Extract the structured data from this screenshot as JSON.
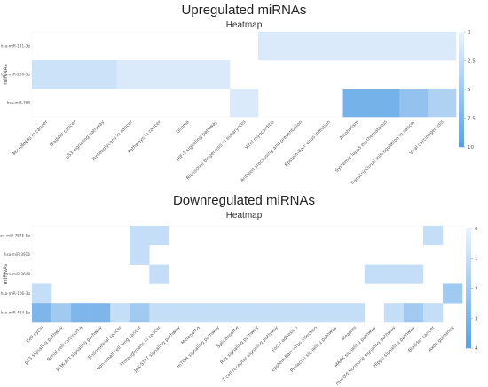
{
  "colors": {
    "cell_light": "#e8f2fc",
    "cell_dark": "#5aa2e6",
    "background": "#ffffff",
    "text": "#222222"
  },
  "chart_data": [
    {
      "type": "heatmap",
      "title": "Upregulated miRNAs",
      "subtitle": "Heatmap",
      "ylabel": "miRNAs",
      "xlabel": "",
      "rows": [
        "hsa-miR-141-3p",
        "hsa-miR-200-3p",
        "hsa-miR-766"
      ],
      "columns": [
        "MicroRNAs in cancer",
        "Bladder cancer",
        "p53 signaling pathway",
        "Proteoglycans in cancer",
        "Pathways in cancer",
        "Glioma",
        "HIF-1 signaling pathway",
        "Ribosome biogenesis in eukaryotes",
        "Viral myocarditis",
        "Antigen processing and presentation",
        "Epstein-Barr virus infection",
        "Alcoholism",
        "Systemic lupus erythematosus",
        "Transcriptional misregulation in cancer",
        "Viral carcinogenesis"
      ],
      "values": [
        [
          0,
          0,
          0,
          0,
          0,
          0,
          0,
          0,
          1,
          1,
          1,
          1,
          1,
          1,
          1
        ],
        [
          2,
          2,
          2,
          1,
          1,
          1,
          1,
          0,
          0,
          0,
          0,
          0,
          0,
          0,
          0
        ],
        [
          0,
          0,
          0,
          0,
          0,
          0,
          0,
          1,
          0,
          0,
          0,
          8,
          8,
          6,
          4
        ]
      ],
      "colorbar": {
        "min": 0,
        "max": 10,
        "ticks": [
          "0",
          "2.5",
          "5",
          "7.5",
          "10"
        ]
      }
    },
    {
      "type": "heatmap",
      "title": "Downregulated miRNAs",
      "subtitle": "Heatmap",
      "ylabel": "miRNAs",
      "xlabel": "",
      "rows": [
        "hsa-miR-7845-5p",
        "hsa-miR-3916",
        "hsa-miR-3648",
        "hsa-miR-106-3p",
        "hsa-miR-424-5p"
      ],
      "columns": [
        "Cell cycle",
        "p53 signaling pathway",
        "Renal cell carcinoma",
        "PI3K-Akt signaling pathway",
        "Endometrial cancer",
        "Non-small cell lung cancer",
        "Proteoglycans in cancer",
        "JAK-STAT signaling pathway",
        "Melanoma",
        "mTOR signaling pathway",
        "Spliceosome",
        "Ras signaling pathway",
        "T cell receptor signaling pathway",
        "Focal adhesion",
        "Epstein-Barr virus infection",
        "Prolactin signaling pathway",
        "Measles",
        "MAPK signaling pathway",
        "Thyroid hormone signaling pathway",
        "Hippo signaling pathway",
        "Bladder cancer",
        "Axon guidance"
      ],
      "values": [
        [
          0,
          0,
          0,
          0,
          0,
          1,
          1,
          0,
          0,
          0,
          0,
          0,
          0,
          0,
          0,
          0,
          0,
          0,
          0,
          0,
          1,
          0
        ],
        [
          0,
          0,
          0,
          0,
          0,
          1,
          0,
          0,
          0,
          0,
          0,
          0,
          0,
          0,
          0,
          0,
          0,
          0,
          0,
          0,
          0,
          0
        ],
        [
          0,
          0,
          0,
          0,
          0,
          0,
          1,
          0,
          0,
          0,
          0,
          0,
          0,
          0,
          0,
          0,
          0,
          1,
          1,
          1,
          0,
          0
        ],
        [
          1,
          0,
          0,
          0,
          0,
          0,
          0,
          0,
          0,
          0,
          0,
          0,
          0,
          0,
          0,
          0,
          0,
          0,
          0,
          0,
          0,
          2
        ],
        [
          3,
          2,
          3,
          3,
          1,
          2,
          1,
          1,
          1,
          1,
          1,
          1,
          1,
          1,
          1,
          1,
          1,
          0,
          1,
          2,
          1,
          0
        ]
      ],
      "colorbar": {
        "min": 0,
        "max": 4,
        "ticks": [
          "0",
          "1",
          "2",
          "3",
          "4"
        ]
      }
    }
  ]
}
